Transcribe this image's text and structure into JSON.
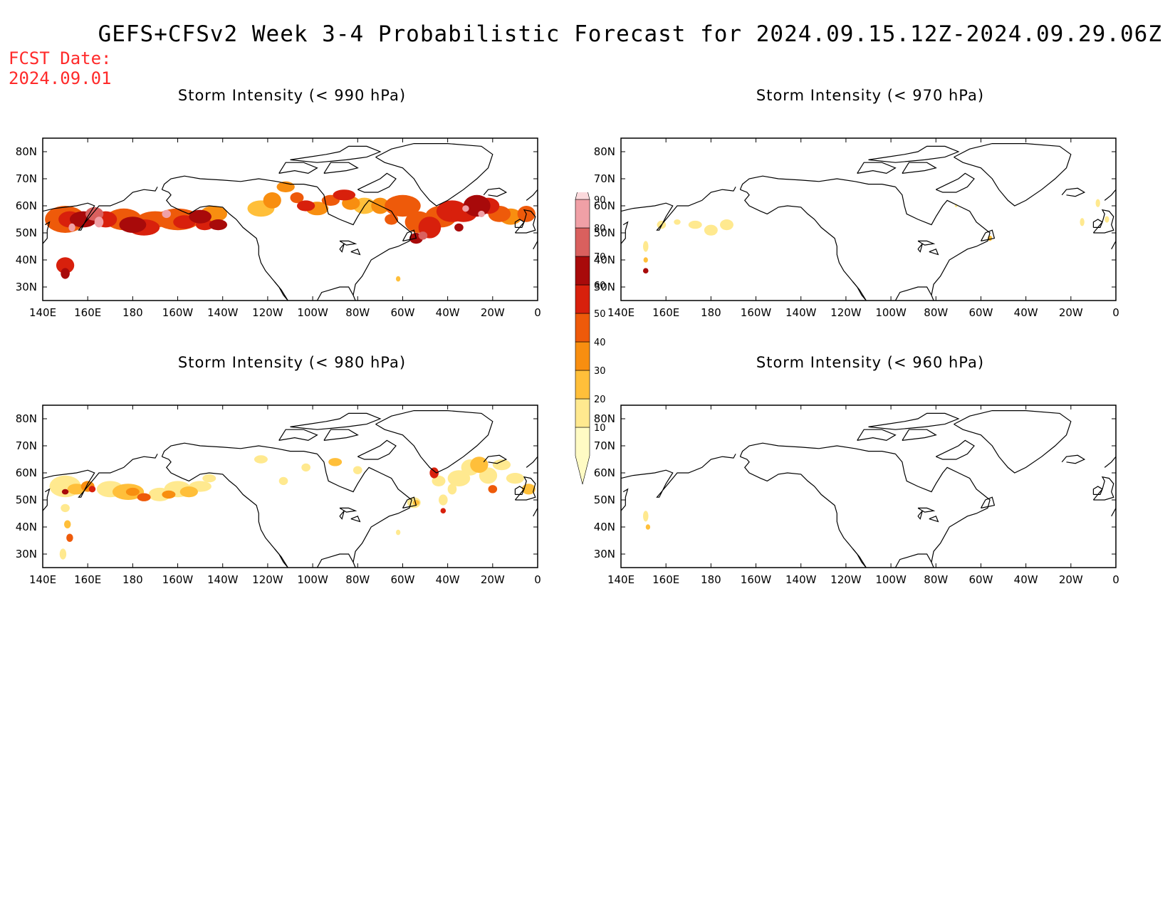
{
  "title": "GEFS+CFSv2 Week 3-4 Probabilistic Forecast for 2024.09.15.12Z-2024.09.29.06Z",
  "forecast_date": {
    "label": "FCST Date:",
    "value": "2024.09.01"
  },
  "axes": {
    "lon_ticks": [
      "140E",
      "160E",
      "180",
      "160W",
      "140W",
      "120W",
      "100W",
      "80W",
      "60W",
      "40W",
      "20W",
      "0"
    ],
    "lat_ticks": [
      "80N",
      "70N",
      "60N",
      "50N",
      "40N",
      "30N"
    ]
  },
  "panels": [
    {
      "id": "p990",
      "title": "Storm Intensity (< 990 hPa)"
    },
    {
      "id": "p970",
      "title": "Storm Intensity (< 970 hPa)"
    },
    {
      "id": "p980",
      "title": "Storm Intensity (< 980 hPa)"
    },
    {
      "id": "p960",
      "title": "Storm Intensity (< 960 hPa)"
    }
  ],
  "legend": {
    "levels": [
      "10",
      "20",
      "30",
      "40",
      "50",
      "60",
      "70",
      "80",
      "90"
    ],
    "colors": [
      "#fffbc4",
      "#ffe98f",
      "#ffbf3a",
      "#f88e10",
      "#ee5a0a",
      "#d8200c",
      "#a80a0a",
      "#d9605e",
      "#f0a0a6",
      "#fbd9dc"
    ]
  }
}
